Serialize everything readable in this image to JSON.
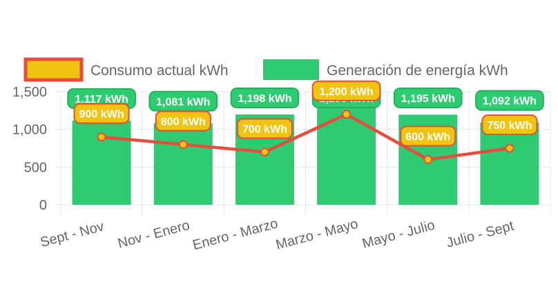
{
  "colors": {
    "bar": "#2ecc71",
    "bar_label_bg": "#2ecc71",
    "bar_label_border": "#27ae60",
    "line": "#e74c3c",
    "point_fill": "#f1c40f",
    "line_label_bg": "#f1c40f",
    "line_label_border": "#e74c3c",
    "grid": "#e5e5e5",
    "text": "#666666"
  },
  "chart_data": {
    "type": "bar",
    "categories": [
      "Sept - Nov",
      "Nov - Enero",
      "Enero - Marzo",
      "Marzo - Mayo",
      "Mayo - Julio",
      "Julio - Sept"
    ],
    "series": [
      {
        "name": "Consumo actual kWh",
        "type": "line",
        "values": [
          900,
          800,
          700,
          1200,
          600,
          750
        ],
        "labels": [
          "900 kWh",
          "800 kWh",
          "700 kWh",
          "1,200 kWh",
          "600 kWh",
          "750 kWh"
        ]
      },
      {
        "name": "Generación de energía kWh",
        "type": "bar",
        "values": [
          1117,
          1081,
          1198,
          1290,
          1195,
          1092
        ],
        "labels": [
          "1,117 kWh",
          "1,081 kWh",
          "1,198 kWh",
          "1,290 kWh",
          "1,195 kWh",
          "1,092 kWh"
        ]
      }
    ],
    "ylim": [
      0,
      1500
    ],
    "yticks": [
      0,
      500,
      1000,
      1500
    ],
    "ytick_labels": [
      "0",
      "500",
      "1,000",
      "1,500"
    ],
    "xlabel": "",
    "ylabel": "",
    "legend_position": "top",
    "grid": true
  }
}
